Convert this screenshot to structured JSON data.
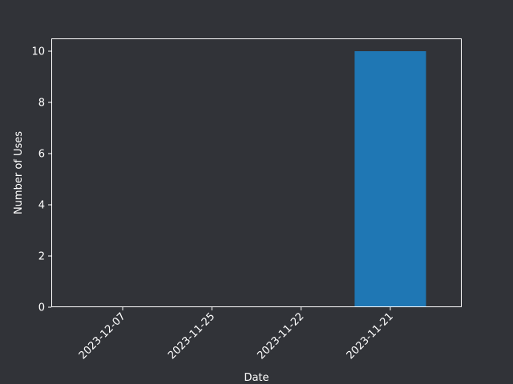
{
  "colors": {
    "background": "#313338",
    "axes_face": "#313338",
    "spine": "#ffffff",
    "text": "#ffffff",
    "bar": "#1f77b4"
  },
  "chart_data": {
    "type": "bar",
    "title": "",
    "xlabel": "Date",
    "ylabel": "Number of Uses",
    "categories": [
      "2023-12-07",
      "2023-11-25",
      "2023-11-22",
      "2023-11-21"
    ],
    "values": [
      0,
      0,
      0,
      10
    ],
    "ylim": [
      0,
      10.5
    ],
    "yticks": [
      0,
      2,
      4,
      6,
      8,
      10
    ],
    "xtick_rotation_deg": 45,
    "grid": false,
    "legend": "none"
  }
}
